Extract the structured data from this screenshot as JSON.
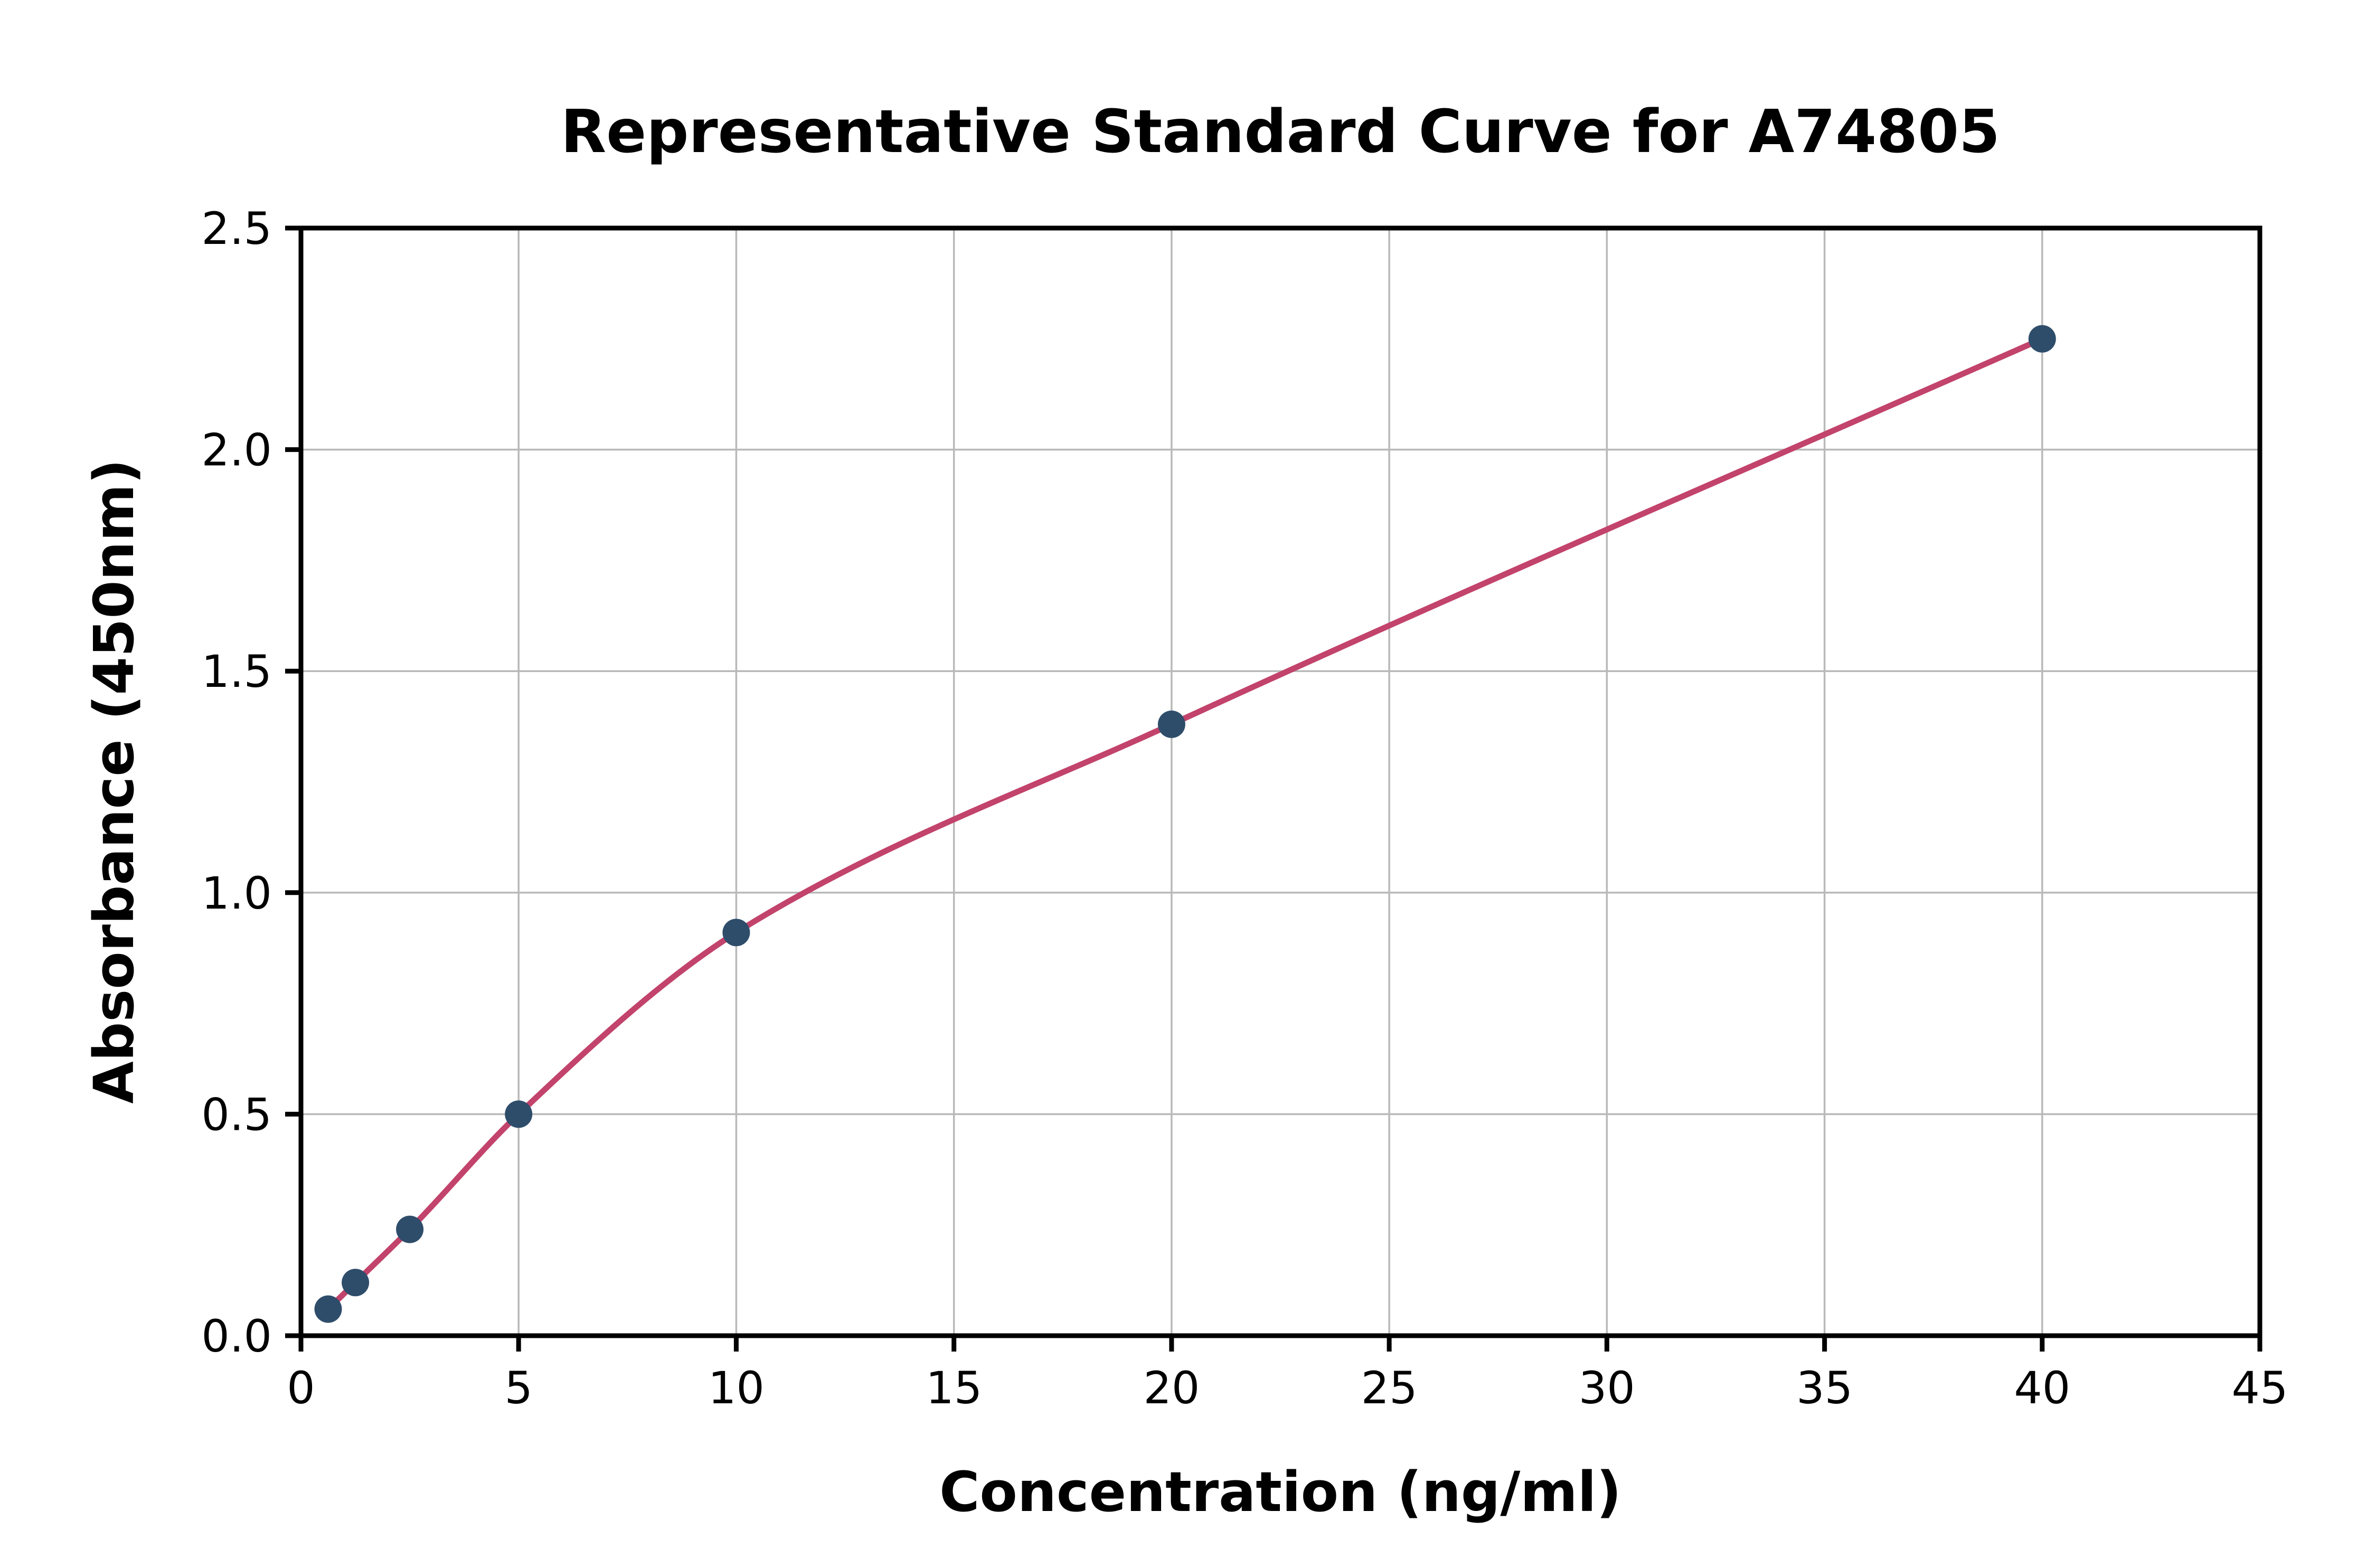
{
  "chart_data": {
    "type": "scatter",
    "title": "Representative Standard Curve for A74805",
    "xlabel": "Concentration (ng/ml)",
    "ylabel": "Absorbance (450nm)",
    "x": [
      0.625,
      1.25,
      2.5,
      5,
      10,
      20,
      40
    ],
    "y": [
      0.06,
      0.12,
      0.24,
      0.5,
      0.91,
      1.38,
      2.25
    ],
    "xlim": [
      0,
      45
    ],
    "ylim": [
      0,
      2.5
    ],
    "xticks": [
      0,
      5,
      10,
      15,
      20,
      25,
      30,
      35,
      40,
      45
    ],
    "xtick_labels": [
      "0",
      "5",
      "10",
      "15",
      "20",
      "25",
      "30",
      "35",
      "40",
      "45"
    ],
    "yticks": [
      0,
      0.5,
      1.0,
      1.5,
      2.0,
      2.5
    ],
    "ytick_labels": [
      "0.0",
      "0.5",
      "1.0",
      "1.5",
      "2.0",
      "2.5"
    ],
    "grid": true,
    "legend_position": "none",
    "marker_color": "#2e4d6b",
    "curve_color": "#c2436b",
    "grid_color": "#b9b9b9",
    "axis_color": "#000000",
    "background_color": "#ffffff"
  }
}
